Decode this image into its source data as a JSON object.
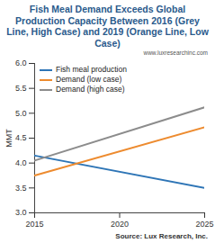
{
  "chart_data": {
    "type": "line",
    "title": "Fish Meal Demand Exceeds Global Production Capacity Between 2016 (Grey Line, High Case) and 2019 (Orange Line, Low Case)",
    "subtitle": "www.luxresearchinc.com",
    "caption": "Source: Lux Research, Inc.",
    "y_label": "MMT",
    "x": [
      2015,
      2025
    ],
    "series": [
      {
        "name": "Fish meal production",
        "color": "#2e75b6",
        "values": [
          4.15,
          3.5
        ]
      },
      {
        "name": "Demand (low case)",
        "color": "#ed8b2f",
        "values": [
          3.75,
          4.72
        ]
      },
      {
        "name": "Demand (high case)",
        "color": "#8c8c8c",
        "values": [
          4.05,
          5.12
        ]
      }
    ],
    "xlim": [
      2015,
      2025
    ],
    "xticks": [
      2015,
      2020,
      2025
    ],
    "ylim": [
      3,
      6
    ],
    "yticks": [
      {
        "value": 3,
        "label": "3.0"
      },
      3.5,
      {
        "value": 4,
        "label": "4.0"
      },
      4.5,
      {
        "value": 5,
        "label": "5.0"
      },
      5.5,
      {
        "value": 6,
        "label": "6.0"
      }
    ],
    "grid": false,
    "legend": "top-left"
  }
}
